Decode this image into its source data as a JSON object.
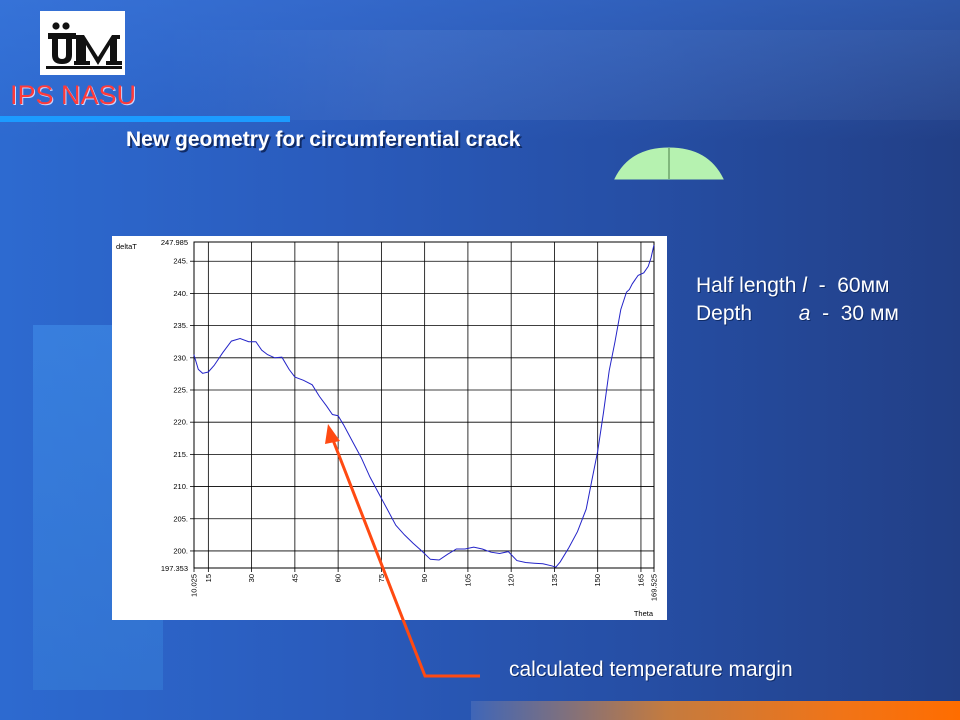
{
  "header": {
    "org_name": "IPS NASU",
    "title": "New geometry for circumferential crack"
  },
  "info": {
    "line1_label": "Half length",
    "line1_symbol": "l",
    "line1_value": "-  60мм",
    "line2_label": "Depth",
    "line2_symbol": "a",
    "line2_value": "-  30 мм"
  },
  "annotation": {
    "text": "calculated temperature margin"
  },
  "colors": {
    "accent_red": "#ff3a3a",
    "arrow": "#ff4a12",
    "series": "#2424c8"
  },
  "chart_data": {
    "type": "line",
    "title": "",
    "xlabel": "Theta",
    "ylabel": "deltaT",
    "xlim": [
      10.025,
      169.525
    ],
    "ylim": [
      197.353,
      247.985
    ],
    "grid": true,
    "xticks": [
      15,
      30,
      45,
      60,
      75,
      90,
      105,
      120,
      135,
      150,
      165
    ],
    "x_edge_labels": [
      "10.025",
      "169.525"
    ],
    "yticks": [
      200,
      205,
      210,
      215,
      220,
      225,
      230,
      235,
      240,
      245
    ],
    "y_edge_labels": [
      "197.353",
      "247.985"
    ],
    "series": [
      {
        "name": "",
        "x": [
          10.0,
          11.5,
          13.0,
          15.0,
          17.0,
          20.0,
          23.0,
          26.0,
          29.0,
          31.5,
          33.5,
          35.5,
          38.0,
          40.5,
          43.0,
          45.0,
          48.0,
          51.0,
          53.5,
          56.0,
          58.0,
          60.0,
          62.0,
          65.0,
          68.0,
          71.0,
          74.0,
          77.0,
          80.0,
          83.0,
          86.0,
          89.0,
          92.0,
          95.0,
          98.0,
          101.0,
          104.0,
          107.0,
          110.0,
          113.0,
          116.0,
          119.0,
          122.0,
          125.0,
          128.0,
          131.0,
          134.0,
          135.5,
          137.0,
          140.0,
          143.0,
          146.0,
          148.0,
          150.0,
          152.0,
          154.0,
          156.0,
          158.0,
          160.0,
          161.0,
          162.0,
          164.0,
          166.0,
          167.5,
          168.5,
          169.5
        ],
        "y": [
          230.5,
          228.2,
          227.6,
          227.8,
          228.8,
          230.8,
          232.6,
          233.0,
          232.5,
          232.5,
          231.2,
          230.5,
          230.0,
          230.1,
          228.2,
          227.0,
          226.5,
          225.8,
          224.0,
          222.5,
          221.2,
          221.0,
          219.5,
          217.0,
          214.5,
          211.5,
          209.0,
          206.5,
          204.0,
          202.5,
          201.2,
          200.0,
          198.7,
          198.6,
          199.5,
          200.3,
          200.3,
          200.6,
          200.3,
          199.8,
          199.6,
          199.9,
          198.5,
          198.2,
          198.1,
          198.0,
          197.7,
          197.5,
          198.3,
          200.5,
          203.0,
          206.5,
          211.0,
          215.5,
          221.5,
          228.0,
          232.5,
          237.5,
          240.2,
          240.6,
          241.5,
          242.8,
          243.2,
          244.2,
          245.5,
          247.5
        ]
      }
    ]
  }
}
